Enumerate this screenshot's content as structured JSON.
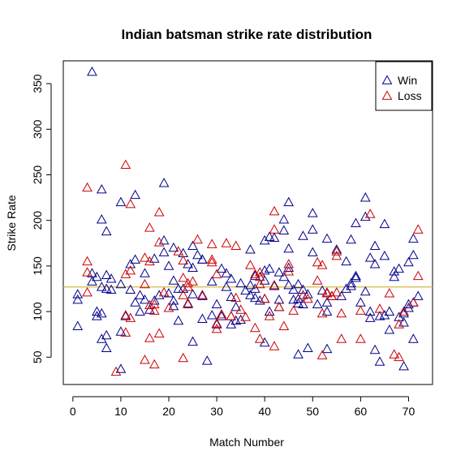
{
  "chart_data": {
    "type": "scatter",
    "title": "Indian batsman strike rate distribution",
    "xlabel": "Match Number",
    "ylabel": "Strike Rate",
    "xlim": [
      -2,
      75
    ],
    "ylim": [
      20,
      375
    ],
    "xticks": [
      0,
      10,
      20,
      30,
      40,
      50,
      60,
      70
    ],
    "yticks": [
      50,
      100,
      150,
      200,
      250,
      300,
      350
    ],
    "grid": false,
    "legend": "top-right",
    "marker": "open-triangle",
    "reference_line": {
      "y": 127,
      "color": "#d4b84a"
    },
    "series": [
      {
        "name": "Win",
        "color": "#00008b",
        "points": [
          [
            1,
            84
          ],
          [
            1,
            113
          ],
          [
            1,
            119
          ],
          [
            4,
            363
          ],
          [
            4,
            142
          ],
          [
            4,
            133
          ],
          [
            5,
            100
          ],
          [
            5,
            95
          ],
          [
            5,
            138
          ],
          [
            6,
            234
          ],
          [
            6,
            201
          ],
          [
            6,
            127
          ],
          [
            6,
            98
          ],
          [
            6,
            70
          ],
          [
            7,
            188
          ],
          [
            7,
            140
          ],
          [
            7,
            125
          ],
          [
            7,
            74
          ],
          [
            7,
            60
          ],
          [
            8,
            136
          ],
          [
            8,
            124
          ],
          [
            10,
            220
          ],
          [
            10,
            130
          ],
          [
            10,
            78
          ],
          [
            10,
            37
          ],
          [
            11,
            95
          ],
          [
            12,
            152
          ],
          [
            12,
            124
          ],
          [
            13,
            228
          ],
          [
            13,
            157
          ],
          [
            13,
            110
          ],
          [
            14,
            118
          ],
          [
            14,
            100
          ],
          [
            15,
            142
          ],
          [
            15,
            113
          ],
          [
            16,
            102
          ],
          [
            17,
            158
          ],
          [
            17,
            112
          ],
          [
            18,
            118
          ],
          [
            19,
            241
          ],
          [
            19,
            178
          ],
          [
            19,
            165
          ],
          [
            20,
            150
          ],
          [
            20,
            120
          ],
          [
            21,
            170
          ],
          [
            21,
            134
          ],
          [
            21,
            112
          ],
          [
            21,
            106
          ],
          [
            22,
            125
          ],
          [
            22,
            90
          ],
          [
            23,
            164
          ],
          [
            23,
            125
          ],
          [
            24,
            152
          ],
          [
            24,
            109
          ],
          [
            25,
            172
          ],
          [
            25,
            148
          ],
          [
            25,
            119
          ],
          [
            25,
            67
          ],
          [
            26,
            162
          ],
          [
            27,
            157
          ],
          [
            27,
            118
          ],
          [
            27,
            92
          ],
          [
            27,
            117
          ],
          [
            27,
            157
          ],
          [
            28,
            46
          ],
          [
            29,
            133
          ],
          [
            29,
            96
          ],
          [
            30,
            108
          ],
          [
            30,
            86
          ],
          [
            31,
            147
          ],
          [
            31,
            95
          ],
          [
            32,
            142
          ],
          [
            32,
            127
          ],
          [
            33,
            136
          ],
          [
            33,
            116
          ],
          [
            33,
            86
          ],
          [
            34,
            105
          ],
          [
            34,
            90
          ],
          [
            35,
            131
          ],
          [
            35,
            91
          ],
          [
            36,
            123
          ],
          [
            37,
            168
          ],
          [
            37,
            129
          ],
          [
            37,
            118
          ],
          [
            38,
            139
          ],
          [
            38,
            125
          ],
          [
            38,
            115
          ],
          [
            39,
            112
          ],
          [
            40,
            178
          ],
          [
            40,
            145
          ],
          [
            40,
            134
          ],
          [
            40,
            114
          ],
          [
            40,
            66
          ],
          [
            41,
            182
          ],
          [
            41,
            147
          ],
          [
            41,
            100
          ],
          [
            42,
            181
          ],
          [
            42,
            128
          ],
          [
            43,
            143
          ],
          [
            43,
            113
          ],
          [
            43,
            105
          ],
          [
            44,
            201
          ],
          [
            44,
            189
          ],
          [
            44,
            138
          ],
          [
            45,
            220
          ],
          [
            45,
            169
          ],
          [
            45,
            148
          ],
          [
            45,
            129
          ],
          [
            46,
            124
          ],
          [
            46,
            113
          ],
          [
            47,
            109
          ],
          [
            47,
            53
          ],
          [
            47,
            130
          ],
          [
            47,
            114
          ],
          [
            48,
            183
          ],
          [
            48,
            124
          ],
          [
            48,
            108
          ],
          [
            49,
            60
          ],
          [
            49,
            119
          ],
          [
            50,
            208
          ],
          [
            50,
            190
          ],
          [
            50,
            165
          ],
          [
            51,
            108
          ],
          [
            52,
            123
          ],
          [
            53,
            180
          ],
          [
            53,
            110
          ],
          [
            53,
            100
          ],
          [
            53,
            59
          ],
          [
            54,
            117
          ],
          [
            55,
            168
          ],
          [
            56,
            117
          ],
          [
            57,
            155
          ],
          [
            57,
            125
          ],
          [
            58,
            179
          ],
          [
            58,
            131
          ],
          [
            58,
            128
          ],
          [
            59,
            197
          ],
          [
            59,
            139
          ],
          [
            59,
            137
          ],
          [
            60,
            110
          ],
          [
            61,
            225
          ],
          [
            61,
            204
          ],
          [
            61,
            122
          ],
          [
            62,
            159
          ],
          [
            62,
            100
          ],
          [
            62,
            93
          ],
          [
            63,
            172
          ],
          [
            63,
            152
          ],
          [
            63,
            58
          ],
          [
            64,
            45
          ],
          [
            64,
            95
          ],
          [
            65,
            196
          ],
          [
            65,
            161
          ],
          [
            65,
            96
          ],
          [
            66,
            100
          ],
          [
            66,
            80
          ],
          [
            67,
            138
          ],
          [
            67,
            144
          ],
          [
            68,
            147
          ],
          [
            68,
            94
          ],
          [
            69,
            88
          ],
          [
            69,
            40
          ],
          [
            69,
            98
          ],
          [
            70,
            154
          ],
          [
            70,
            108
          ],
          [
            70,
            104
          ],
          [
            71,
            180
          ],
          [
            71,
            162
          ],
          [
            71,
            110
          ],
          [
            71,
            70
          ],
          [
            72,
            117
          ]
        ]
      },
      {
        "name": "Loss",
        "color": "#cc0000",
        "points": [
          [
            3,
            236
          ],
          [
            3,
            155
          ],
          [
            3,
            143
          ],
          [
            3,
            121
          ],
          [
            9,
            34
          ],
          [
            11,
            261
          ],
          [
            11,
            141
          ],
          [
            11,
            96
          ],
          [
            11,
            77
          ],
          [
            12,
            218
          ],
          [
            12,
            145
          ],
          [
            12,
            93
          ],
          [
            15,
            159
          ],
          [
            15,
            130
          ],
          [
            15,
            47
          ],
          [
            16,
            192
          ],
          [
            16,
            155
          ],
          [
            16,
            107
          ],
          [
            16,
            71
          ],
          [
            17,
            42
          ],
          [
            17,
            108
          ],
          [
            17,
            101
          ],
          [
            18,
            209
          ],
          [
            18,
            176
          ],
          [
            18,
            76
          ],
          [
            19,
            121
          ],
          [
            20,
            104
          ],
          [
            22,
            166
          ],
          [
            23,
            156
          ],
          [
            23,
            137
          ],
          [
            23,
            118
          ],
          [
            23,
            49
          ],
          [
            24,
            131
          ],
          [
            24,
            108
          ],
          [
            24,
            127
          ],
          [
            25,
            133
          ],
          [
            26,
            179
          ],
          [
            27,
            118
          ],
          [
            29,
            157
          ],
          [
            29,
            174
          ],
          [
            29,
            154
          ],
          [
            30,
            141
          ],
          [
            30,
            87
          ],
          [
            30,
            81
          ],
          [
            31,
            97
          ],
          [
            32,
            175
          ],
          [
            33,
            95
          ],
          [
            33,
            95
          ],
          [
            34,
            172
          ],
          [
            34,
            115
          ],
          [
            35,
            102
          ],
          [
            36,
            94
          ],
          [
            37,
            151
          ],
          [
            38,
            141
          ],
          [
            38,
            82
          ],
          [
            39,
            143
          ],
          [
            39,
            130
          ],
          [
            39,
            138
          ],
          [
            39,
            70
          ],
          [
            40,
            114
          ],
          [
            41,
            95
          ],
          [
            42,
            210
          ],
          [
            42,
            190
          ],
          [
            42,
            129
          ],
          [
            42,
            62
          ],
          [
            43,
            105
          ],
          [
            44,
            84
          ],
          [
            45,
            152
          ],
          [
            45,
            144
          ],
          [
            46,
            101
          ],
          [
            48,
            118
          ],
          [
            49,
            114
          ],
          [
            51,
            134
          ],
          [
            51,
            154
          ],
          [
            52,
            151
          ],
          [
            52,
            52
          ],
          [
            52,
            98
          ],
          [
            53,
            120
          ],
          [
            53,
            121
          ],
          [
            54,
            117
          ],
          [
            55,
            166
          ],
          [
            55,
            161
          ],
          [
            55,
            121
          ],
          [
            56,
            98
          ],
          [
            56,
            70
          ],
          [
            60,
            101
          ],
          [
            60,
            70
          ],
          [
            62,
            207
          ],
          [
            64,
            103
          ],
          [
            66,
            120
          ],
          [
            67,
            53
          ],
          [
            68,
            50
          ],
          [
            68,
            86
          ],
          [
            69,
            100
          ],
          [
            71,
            110
          ],
          [
            72,
            139
          ],
          [
            72,
            190
          ]
        ]
      }
    ]
  }
}
